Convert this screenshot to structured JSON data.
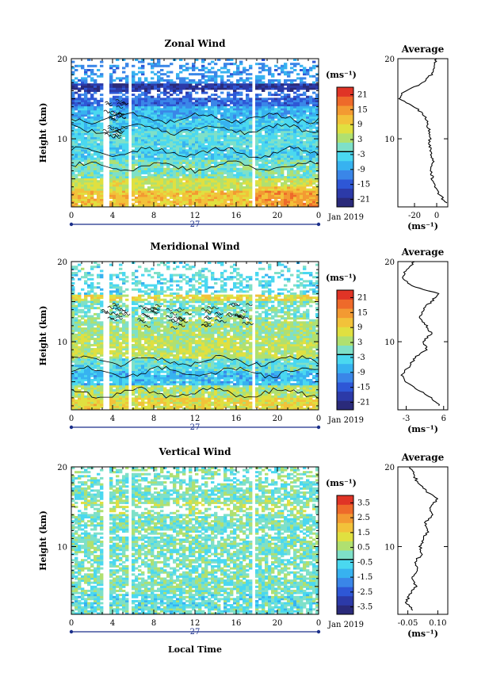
{
  "x_axis": {
    "ticks": [
      "0",
      "4",
      "8",
      "12",
      "16",
      "20",
      "0"
    ],
    "date_label": "27",
    "month_label": "Jan 2019",
    "xlabel": "Local Time"
  },
  "units": "(ms⁻¹)",
  "average_title": "Average",
  "ylabel": "Height (km)",
  "y_ticks": [
    "20",
    "10"
  ],
  "colors": {
    "ramp": [
      "#2a2a7a",
      "#2c3aa8",
      "#2e57d6",
      "#3a86e8",
      "#37b2f0",
      "#4ad8f0",
      "#7ee0c8",
      "#b0e070",
      "#e0e040",
      "#f2c23a",
      "#f39a32",
      "#ee6a2a",
      "#e03426"
    ],
    "missing": "#ffffff",
    "contour": "#000000",
    "axis": "#000000",
    "time_axis": "#1b2f8a"
  },
  "chart_data": [
    {
      "type": "heatmap",
      "title": "Zonal Wind",
      "ylabel": "Height (km)",
      "xlabel": "",
      "xlim": [
        0,
        24
      ],
      "ylim": [
        1.5,
        20
      ],
      "colorbar_ticks": [
        "21",
        "15",
        "9",
        "3",
        "-3",
        "-9",
        "-15",
        "-21"
      ],
      "colorbar_range": [
        -24,
        24
      ],
      "gaps_hours": [
        [
          3.2,
          3.6
        ],
        [
          5.6,
          5.9
        ],
        [
          17.4,
          17.7
        ]
      ],
      "profile": {
        "title": "Average",
        "xticks": [
          "-20",
          "0"
        ],
        "xlim": [
          -35,
          10
        ],
        "heights": [
          2,
          3,
          4,
          5,
          6,
          7,
          8,
          9,
          10,
          11,
          12,
          13,
          14,
          15,
          16,
          17,
          18,
          19,
          20
        ],
        "values": [
          8,
          3,
          -2,
          -4,
          -5,
          -3,
          -5,
          -6,
          -6,
          -7,
          -8,
          -12,
          -20,
          -35,
          -28,
          -12,
          -5,
          -3,
          0
        ]
      }
    },
    {
      "type": "heatmap",
      "title": "Meridional Wind",
      "ylabel": "Height (km)",
      "xlabel": "",
      "xlim": [
        0,
        24
      ],
      "ylim": [
        1.5,
        20
      ],
      "colorbar_ticks": [
        "21",
        "15",
        "9",
        "3",
        "-3",
        "-9",
        "-15",
        "-21"
      ],
      "colorbar_range": [
        -24,
        24
      ],
      "gaps_hours": [
        [
          3.2,
          3.6
        ],
        [
          5.6,
          5.9
        ],
        [
          17.4,
          17.7
        ]
      ],
      "profile": {
        "title": "Average",
        "xticks": [
          "-3",
          "6"
        ],
        "xlim": [
          -5,
          7
        ],
        "heights": [
          2,
          3,
          4,
          5,
          6,
          7,
          8,
          9,
          10,
          11,
          12,
          13,
          14,
          15,
          16,
          17,
          18,
          19,
          20
        ],
        "values": [
          5,
          3,
          0,
          -3,
          -4,
          -2,
          -1,
          2,
          1,
          3,
          2,
          0,
          1,
          3,
          5,
          -2,
          -4,
          -3,
          -1
        ]
      }
    },
    {
      "type": "heatmap",
      "title": "Vertical Wind",
      "ylabel": "Height (km)",
      "xlabel": "Local Time",
      "xlim": [
        0,
        24
      ],
      "ylim": [
        1.5,
        20
      ],
      "colorbar_ticks": [
        "3.5",
        "2.5",
        "1.5",
        "0.5",
        "-0.5",
        "-1.5",
        "-2.5",
        "-3.5"
      ],
      "colorbar_range": [
        -4,
        4
      ],
      "gaps_hours": [
        [
          3.2,
          3.6
        ],
        [
          5.6,
          5.9
        ],
        [
          17.4,
          17.7
        ]
      ],
      "profile": {
        "title": "Average",
        "xticks": [
          "-0.05",
          "0.10"
        ],
        "xlim": [
          -0.1,
          0.15
        ],
        "heights": [
          2,
          3,
          4,
          5,
          6,
          7,
          8,
          9,
          10,
          11,
          12,
          13,
          14,
          15,
          16,
          17,
          18,
          19,
          20
        ],
        "values": [
          -0.02,
          -0.06,
          -0.04,
          -0.01,
          -0.03,
          0.0,
          -0.02,
          0.02,
          0.01,
          0.03,
          0.05,
          0.04,
          0.07,
          0.06,
          0.1,
          0.04,
          0.0,
          -0.02,
          -0.04
        ]
      }
    }
  ]
}
